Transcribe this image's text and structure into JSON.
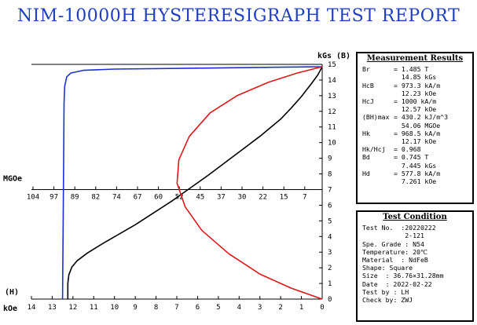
{
  "title": "NIM-10000H HYSTERESIGRAPH TEST REPORT",
  "chart_data": {
    "type": "line",
    "y_right_unit": "kGs",
    "y_right_label": "(B)",
    "y_right_range": [
      0,
      15
    ],
    "y_right_ticks": [
      "0",
      "1",
      "2",
      "3",
      "4",
      "5",
      "6",
      "7",
      "8",
      "9",
      "10",
      "11",
      "12",
      "13",
      "14",
      "15"
    ],
    "x_unit": "kOe",
    "x_label": "(H)",
    "x_range": [
      14,
      0
    ],
    "x_ticks": [
      "14",
      "13",
      "12",
      "11",
      "10",
      "9",
      "8",
      "7",
      "6",
      "5",
      "4",
      "3",
      "2",
      "1",
      "0"
    ],
    "bh_unit": "MGOe",
    "bh_ticks": [
      "104",
      "97",
      "89",
      "82",
      "74",
      "67",
      "60",
      "52",
      "45",
      "37",
      "30",
      "22",
      "15",
      "7"
    ],
    "series": [
      {
        "color": "#1f2fd6",
        "points": [
          [
            12.5,
            0
          ],
          [
            12.49,
            2
          ],
          [
            12.47,
            5
          ],
          [
            12.45,
            9
          ],
          [
            12.43,
            12.5
          ],
          [
            12.4,
            13.6
          ],
          [
            12.3,
            14.2
          ],
          [
            12.1,
            14.45
          ],
          [
            11.5,
            14.62
          ],
          [
            10,
            14.7
          ],
          [
            6,
            14.76
          ],
          [
            2,
            14.82
          ],
          [
            0,
            14.85
          ]
        ]
      },
      {
        "color": "#000000",
        "points": [
          [
            12.25,
            0
          ],
          [
            12.25,
            1.0
          ],
          [
            12.2,
            1.55
          ],
          [
            12.05,
            2.05
          ],
          [
            11.8,
            2.45
          ],
          [
            11.3,
            2.95
          ],
          [
            10.5,
            3.6
          ],
          [
            9,
            4.75
          ],
          [
            7.2,
            6.3
          ],
          [
            5.5,
            7.9
          ],
          [
            4,
            9.4
          ],
          [
            3,
            10.4
          ],
          [
            2,
            11.5
          ],
          [
            1.5,
            12.2
          ],
          [
            1,
            12.95
          ],
          [
            0.5,
            13.8
          ],
          [
            0.2,
            14.35
          ],
          [
            0,
            14.85
          ]
        ]
      },
      {
        "color": "#e01818",
        "points": [
          [
            0,
            0
          ],
          [
            1.5,
            0.7
          ],
          [
            3,
            1.6
          ],
          [
            4.5,
            2.9
          ],
          [
            5.8,
            4.4
          ],
          [
            6.6,
            5.9
          ],
          [
            6.99,
            7.4
          ],
          [
            6.9,
            8.9
          ],
          [
            6.4,
            10.4
          ],
          [
            5.4,
            11.9
          ],
          [
            4.1,
            13.0
          ],
          [
            2.6,
            13.85
          ],
          [
            1.2,
            14.45
          ],
          [
            0,
            14.85
          ]
        ]
      }
    ]
  },
  "measurement": {
    "title": "Measurement Results",
    "rows": [
      {
        "key": "Br",
        "lines": [
          "= 1.485 T",
          "  14.85 kGs"
        ]
      },
      {
        "key": "HcB",
        "lines": [
          "= 973.3 kA/m",
          "  12.23 kOe"
        ]
      },
      {
        "key": "HcJ",
        "lines": [
          "= 1000 kA/m",
          "  12.57 kOe"
        ]
      },
      {
        "key": "(BH)max",
        "lines": [
          "= 430.2 kJ/m^3",
          "  54.06 MGOe"
        ]
      },
      {
        "key": "Hk",
        "lines": [
          "= 968.5 kA/m",
          "  12.17 kOe"
        ]
      },
      {
        "key": "Hk/Hcj",
        "lines": [
          "= 0.968"
        ]
      },
      {
        "key": "Bd",
        "lines": [
          "= 0.745 T",
          "  7.445 kGs"
        ]
      },
      {
        "key": "Hd",
        "lines": [
          "= 577.8 kA/m",
          "  7.261 kOe"
        ]
      }
    ]
  },
  "condition": {
    "title": "Test Condition",
    "rows": [
      {
        "key": "Test No.",
        "value": "  :20220222\n           2-121"
      },
      {
        "key": "Spe. Grade",
        "value": " : N54"
      },
      {
        "key": "Temperature",
        "value": ": 20℃"
      },
      {
        "key": "Material",
        "value": "  : NdFeB"
      },
      {
        "key": "Shape",
        "value": ": Square"
      },
      {
        "key": "Size",
        "value": "  : 36.76×31.28mm"
      },
      {
        "key": "Date",
        "value": "  : 2022-02-22"
      },
      {
        "key": "Test by",
        "value": " : LH"
      },
      {
        "key": "Check by",
        "value": ": ZWJ"
      }
    ]
  }
}
